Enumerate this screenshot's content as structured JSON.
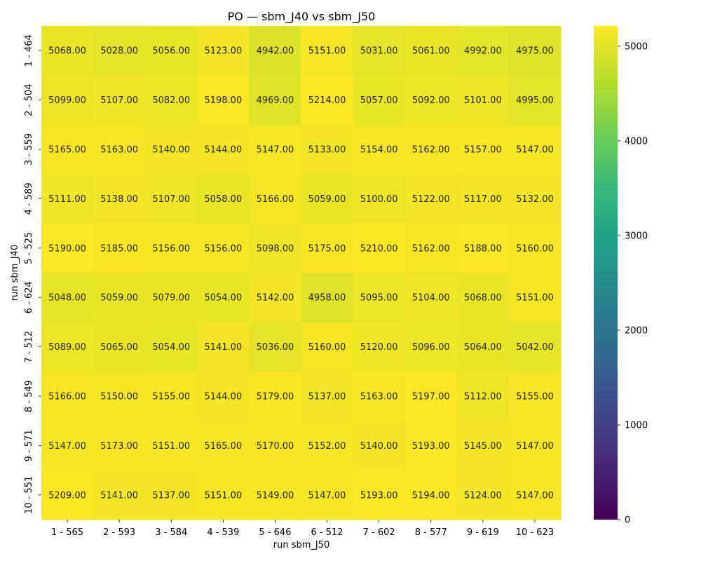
{
  "chart_data": {
    "type": "heatmap",
    "title": "PO — sbm_J40 vs sbm_J50",
    "xlabel": "run sbm_J50",
    "ylabel": "run sbm_J40",
    "columns": [
      "1 - 565",
      "2 - 593",
      "3 - 584",
      "4 - 539",
      "5 - 646",
      "6 - 512",
      "7 - 602",
      "8 - 577",
      "9 - 619",
      "10 - 623"
    ],
    "rows": [
      "1 - 464",
      "2 - 504",
      "3 - 559",
      "4 - 589",
      "5 - 525",
      "6 - 624",
      "7 - 512",
      "8 - 549",
      "9 - 571",
      "10 - 551"
    ],
    "values": [
      [
        5068,
        5028,
        5056,
        5123,
        4942,
        5151,
        5031,
        5061,
        4992,
        4975
      ],
      [
        5099,
        5107,
        5082,
        5198,
        4969,
        5214,
        5057,
        5092,
        5101,
        4995
      ],
      [
        5165,
        5163,
        5140,
        5144,
        5147,
        5133,
        5154,
        5162,
        5157,
        5147
      ],
      [
        5111,
        5138,
        5107,
        5058,
        5166,
        5059,
        5100,
        5122,
        5117,
        5132
      ],
      [
        5190,
        5185,
        5156,
        5156,
        5098,
        5175,
        5210,
        5162,
        5188,
        5160
      ],
      [
        5048,
        5059,
        5079,
        5054,
        5142,
        4958,
        5095,
        5104,
        5068,
        5151
      ],
      [
        5089,
        5065,
        5054,
        5141,
        5036,
        5160,
        5120,
        5096,
        5064,
        5042
      ],
      [
        5166,
        5150,
        5155,
        5144,
        5179,
        5137,
        5163,
        5197,
        5112,
        5155
      ],
      [
        5147,
        5173,
        5151,
        5165,
        5170,
        5152,
        5140,
        5193,
        5145,
        5147
      ],
      [
        5209,
        5141,
        5137,
        5151,
        5149,
        5147,
        5193,
        5194,
        5124,
        5147
      ]
    ],
    "value_format": "0.00",
    "colormap": "viridis",
    "vmin": 0,
    "vmax": 5214,
    "colorbar_ticks": [
      0,
      1000,
      2000,
      3000,
      4000,
      5000
    ],
    "colors": {
      "viridis_stops": [
        "#440154",
        "#482878",
        "#3e4a89",
        "#31688e",
        "#26828e",
        "#1f9e89",
        "#35b779",
        "#6ece58",
        "#b5de2b",
        "#fde725"
      ],
      "text": "#262626",
      "axis": "#000000"
    }
  }
}
